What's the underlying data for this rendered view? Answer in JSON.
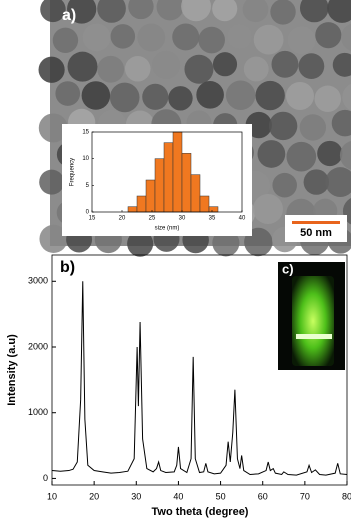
{
  "chart_data": [
    {
      "type": "histogram",
      "panel_label": "a)",
      "annotation": "50 nm",
      "xlabel": "size (nm)",
      "ylabel": "Frequency",
      "bins": [
        21,
        22.5,
        24,
        25.5,
        27,
        28.5,
        30,
        31.5,
        33,
        34.5,
        36
      ],
      "values": [
        1,
        3,
        6,
        10,
        13,
        15,
        11,
        7,
        3,
        1
      ],
      "color": "#f07820",
      "xlim": [
        15,
        40
      ],
      "xticks": [
        15,
        20,
        25,
        30,
        35,
        40
      ],
      "ylim": [
        0,
        15
      ],
      "yticks": [
        0,
        5,
        10,
        15
      ]
    },
    {
      "type": "line",
      "panel_label": "b)",
      "inset_label": "c)",
      "xlabel": "Two theta (degree)",
      "ylabel": "Intensity (a.u)",
      "x": [
        10,
        12,
        14,
        15,
        16,
        16.8,
        17.3,
        17.8,
        18.5,
        20,
        22,
        24,
        26,
        28,
        29.5,
        30.2,
        30.5,
        30.9,
        31.5,
        32.5,
        34,
        34.8,
        35.3,
        35.8,
        37,
        39,
        39.6,
        40,
        40.5,
        42,
        43,
        43.5,
        44,
        45,
        46,
        46.5,
        47,
        48.5,
        50,
        51.3,
        51.8,
        52.3,
        52.9,
        53.4,
        54,
        54.6,
        55,
        55.5,
        57,
        59,
        60.8,
        61.3,
        61.8,
        62.5,
        63,
        64.5,
        65,
        66,
        68,
        70.5,
        71,
        71.6,
        72.5,
        73.5,
        75,
        77.2,
        77.8,
        78.4,
        80
      ],
      "series": [
        {
          "color": "#000000",
          "values": [
            120,
            110,
            120,
            140,
            250,
            1200,
            3000,
            900,
            200,
            120,
            100,
            80,
            90,
            110,
            300,
            2000,
            1100,
            2380,
            600,
            150,
            100,
            150,
            250,
            120,
            90,
            100,
            200,
            480,
            150,
            90,
            300,
            1850,
            300,
            90,
            100,
            230,
            100,
            70,
            80,
            200,
            560,
            250,
            700,
            1350,
            300,
            150,
            350,
            120,
            60,
            70,
            120,
            250,
            120,
            150,
            80,
            60,
            100,
            60,
            50,
            100,
            200,
            90,
            130,
            60,
            50,
            80,
            230,
            70,
            60
          ]
        }
      ],
      "xlim": [
        10,
        80
      ],
      "xticks": [
        10,
        20,
        30,
        40,
        50,
        60,
        70,
        80
      ],
      "ylim": [
        -100,
        3400
      ],
      "yticks": [
        0,
        1000,
        2000,
        3000
      ]
    }
  ]
}
